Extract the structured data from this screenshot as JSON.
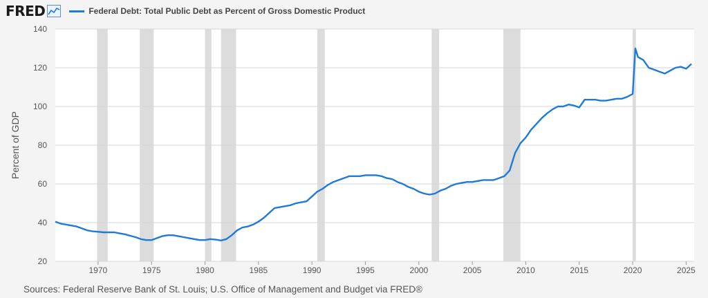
{
  "header": {
    "logo_text": "FRED",
    "logo_icon": "line-graph-icon",
    "legend_label": "Federal Debt: Total Public Debt as Percent of Gross Domestic Product"
  },
  "footer": {
    "source": "Sources: Federal Reserve Bank of St. Louis; U.S. Office of Management and Budget via FRED®"
  },
  "colors": {
    "series": "#1d7ad8",
    "recession": "#dcdcdc",
    "grid": "#d6d6d6",
    "plot_bg": "#ffffff",
    "page_bg": "#f4f4f4"
  },
  "chart_data": {
    "type": "line",
    "title": "",
    "xlabel": "",
    "ylabel": "Percent of GDP",
    "xlim": [
      1966.0,
      2025.75
    ],
    "ylim": [
      20,
      140
    ],
    "yticks": [
      20,
      40,
      60,
      80,
      100,
      120,
      140
    ],
    "xticks": [
      1970,
      1975,
      1980,
      1985,
      1990,
      1995,
      2000,
      2005,
      2010,
      2015,
      2020,
      2025
    ],
    "grid": true,
    "legend_position": "top-left",
    "recessions": [
      [
        1969.9,
        1970.9
      ],
      [
        1973.9,
        1975.2
      ],
      [
        1980.0,
        1980.6
      ],
      [
        1981.5,
        1982.9
      ],
      [
        1990.5,
        1991.2
      ],
      [
        2001.2,
        2001.9
      ],
      [
        2007.9,
        2009.5
      ],
      [
        2020.0,
        2020.3
      ]
    ],
    "series": [
      {
        "name": "Federal Debt: Total Public Debt as Percent of Gross Domestic Product",
        "x": [
          1966.0,
          1966.5,
          1967.0,
          1967.5,
          1968.0,
          1968.5,
          1969.0,
          1969.5,
          1970.0,
          1970.5,
          1971.0,
          1971.5,
          1972.0,
          1972.5,
          1973.0,
          1973.5,
          1974.0,
          1974.5,
          1975.0,
          1975.5,
          1976.0,
          1976.5,
          1977.0,
          1977.5,
          1978.0,
          1978.5,
          1979.0,
          1979.5,
          1980.0,
          1980.5,
          1981.0,
          1981.5,
          1982.0,
          1982.5,
          1983.0,
          1983.5,
          1984.0,
          1984.5,
          1985.0,
          1985.5,
          1986.0,
          1986.5,
          1987.0,
          1987.5,
          1988.0,
          1988.5,
          1989.0,
          1989.5,
          1990.0,
          1990.5,
          1991.0,
          1991.5,
          1992.0,
          1992.5,
          1993.0,
          1993.5,
          1994.0,
          1994.5,
          1995.0,
          1995.5,
          1996.0,
          1996.5,
          1997.0,
          1997.5,
          1998.0,
          1998.5,
          1999.0,
          1999.5,
          2000.0,
          2000.5,
          2001.0,
          2001.5,
          2002.0,
          2002.5,
          2003.0,
          2003.5,
          2004.0,
          2004.5,
          2005.0,
          2005.5,
          2006.0,
          2006.5,
          2007.0,
          2007.5,
          2008.0,
          2008.5,
          2009.0,
          2009.5,
          2010.0,
          2010.5,
          2011.0,
          2011.5,
          2012.0,
          2012.5,
          2013.0,
          2013.5,
          2014.0,
          2014.5,
          2015.0,
          2015.5,
          2016.0,
          2016.5,
          2017.0,
          2017.5,
          2018.0,
          2018.5,
          2019.0,
          2019.5,
          2020.0,
          2020.25,
          2020.5,
          2021.0,
          2021.5,
          2022.0,
          2022.5,
          2023.0,
          2023.5,
          2024.0,
          2024.5,
          2025.0,
          2025.5
        ],
        "values": [
          40.5,
          39.5,
          39.0,
          38.5,
          38.0,
          37.0,
          36.0,
          35.5,
          35.3,
          35.0,
          35.0,
          35.0,
          34.5,
          34.0,
          33.2,
          32.5,
          31.5,
          31.0,
          31.0,
          32.0,
          33.0,
          33.5,
          33.5,
          33.0,
          32.5,
          32.0,
          31.5,
          31.0,
          31.0,
          31.5,
          31.2,
          30.8,
          31.5,
          33.5,
          36.0,
          37.5,
          38.0,
          39.0,
          40.5,
          42.5,
          45.0,
          47.5,
          48.0,
          48.5,
          49.0,
          50.0,
          50.5,
          51.0,
          53.5,
          56.0,
          57.5,
          59.5,
          61.0,
          62.0,
          63.0,
          64.0,
          64.0,
          64.0,
          64.5,
          64.5,
          64.5,
          64.0,
          63.0,
          62.5,
          61.0,
          60.0,
          58.5,
          57.5,
          56.0,
          55.0,
          54.5,
          55.0,
          56.5,
          57.5,
          59.0,
          60.0,
          60.5,
          61.0,
          61.0,
          61.5,
          62.0,
          62.0,
          62.0,
          63.0,
          64.0,
          67.0,
          76.0,
          81.0,
          84.0,
          88.0,
          91.0,
          94.0,
          96.5,
          98.5,
          100.0,
          100.0,
          101.0,
          100.5,
          99.5,
          103.5,
          103.5,
          103.5,
          103.0,
          103.0,
          103.5,
          104.0,
          104.0,
          105.0,
          106.5,
          130.0,
          125.5,
          124.0,
          120.0,
          119.0,
          118.0,
          117.0,
          118.5,
          120.0,
          120.5,
          119.5,
          122.0
        ]
      }
    ]
  }
}
